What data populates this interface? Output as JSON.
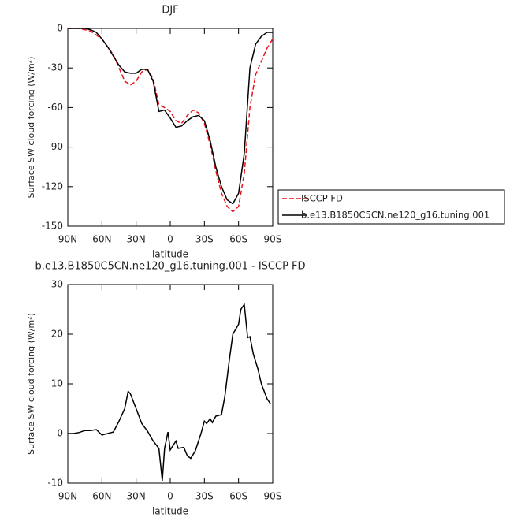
{
  "chart_data": [
    {
      "type": "line",
      "title": "DJF",
      "x_label": "latitude",
      "y_label": "Surface SW cloud forcing (W/m²)",
      "x": [
        90,
        85,
        80,
        75,
        70,
        65,
        60,
        55,
        50,
        45,
        40,
        35,
        30,
        25,
        20,
        15,
        10,
        5,
        0,
        -5,
        -10,
        -15,
        -20,
        -25,
        -30,
        -35,
        -40,
        -45,
        -50,
        -55,
        -60,
        -65,
        -70,
        -75,
        -80,
        -85,
        -90
      ],
      "series": [
        {
          "name": "ISCCP FD",
          "color": "#e8141a",
          "linestyle": "dashed",
          "values": [
            0,
            0,
            0,
            -1,
            -2,
            -5,
            -8,
            -14,
            -20,
            -30,
            -40,
            -43,
            -40,
            -33,
            -31,
            -38,
            -58,
            -60,
            -63,
            -70,
            -72,
            -66,
            -62,
            -64,
            -72,
            -88,
            -108,
            -125,
            -135,
            -139,
            -135,
            -110,
            -60,
            -35,
            -25,
            -15,
            -8
          ]
        },
        {
          "name": "b.e13.B1850C5CN.ne120_g16.tuning.001",
          "color": "#000000",
          "linestyle": "solid",
          "values": [
            0,
            0,
            0,
            0,
            -1,
            -3,
            -8,
            -14,
            -21,
            -28,
            -33,
            -34,
            -34,
            -31,
            -31,
            -40,
            -63,
            -62,
            -68,
            -75,
            -74,
            -70,
            -67,
            -66,
            -70,
            -85,
            -105,
            -120,
            -130,
            -133,
            -125,
            -95,
            -30,
            -12,
            -6,
            -3,
            -3
          ]
        }
      ],
      "xlim": [
        90,
        -90
      ],
      "xticks": [
        {
          "value": 90,
          "label": "90N"
        },
        {
          "value": 60,
          "label": "60N"
        },
        {
          "value": 30,
          "label": "30N"
        },
        0,
        {
          "value": -30,
          "label": "30S"
        },
        {
          "value": -60,
          "label": "60S"
        },
        {
          "value": -90,
          "label": "90S"
        }
      ],
      "ylim": [
        -150,
        0
      ],
      "yticks": [
        -150,
        -120,
        -90,
        -60,
        -30,
        0
      ],
      "legend": "right"
    },
    {
      "type": "line",
      "title": "b.e13.B1850C5CN.ne120_g16.tuning.001 - ISCCP FD",
      "x_label": "latitude",
      "y_label": "Surface SW cloud forcing (W/m²)",
      "x": [
        90,
        85,
        80,
        75,
        70,
        65,
        60,
        55,
        50,
        45,
        40,
        37,
        35,
        30,
        25,
        20,
        15,
        10,
        7,
        5,
        2,
        0,
        -5,
        -7,
        -12,
        -15,
        -18,
        -22,
        -27,
        -30,
        -32,
        -35,
        -37,
        -40,
        -45,
        -48,
        -52,
        -55,
        -60,
        -62,
        -65,
        -68,
        -70,
        -73,
        -77,
        -80,
        -85,
        -88
      ],
      "series": [
        {
          "color": "#000000",
          "linestyle": "solid",
          "values": [
            0,
            0,
            0.2,
            0.6,
            0.6,
            0.8,
            -0.3,
            0,
            0.3,
            2.5,
            5,
            8.5,
            8,
            5,
            2,
            0.5,
            -1.5,
            -3,
            -9.5,
            -3,
            0.3,
            -3.3,
            -1.5,
            -3,
            -2.8,
            -4.5,
            -5,
            -3.5,
            0,
            2.5,
            2,
            3,
            2.2,
            3.5,
            3.8,
            7.5,
            15,
            20,
            22,
            25,
            26,
            19.3,
            19.5,
            16,
            13,
            10,
            7,
            6
          ]
        }
      ],
      "xlim": [
        90,
        -90
      ],
      "xticks": [
        {
          "value": 90,
          "label": "90N"
        },
        {
          "value": 60,
          "label": "60N"
        },
        {
          "value": 30,
          "label": "30N"
        },
        0,
        {
          "value": -30,
          "label": "30S"
        },
        {
          "value": -60,
          "label": "60S"
        },
        {
          "value": -90,
          "label": "90S"
        }
      ],
      "ylim": [
        -10,
        30
      ],
      "yticks": [
        -10,
        0,
        10,
        20,
        30
      ]
    }
  ]
}
